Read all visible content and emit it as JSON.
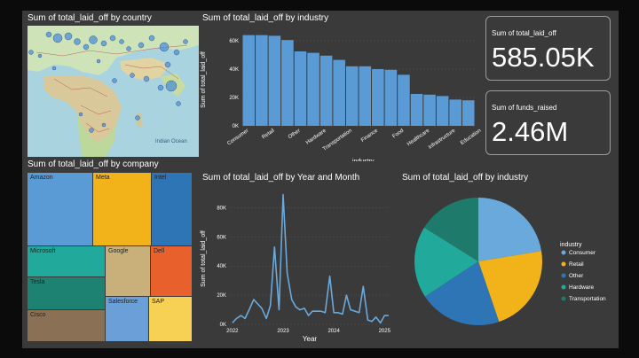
{
  "map": {
    "title": "Sum of total_laid_off by country",
    "ocean_label": "Indian Ocean"
  },
  "treemap": {
    "title": "Sum of total_laid_off by company",
    "tiles": [
      {
        "label": "Amazon",
        "color": "#5b9bd5"
      },
      {
        "label": "Meta",
        "color": "#f2b31a"
      },
      {
        "label": "Intel",
        "color": "#2e75b6"
      },
      {
        "label": "Microsoft",
        "color": "#21a99b"
      },
      {
        "label": "Google",
        "color": "#c9b07a"
      },
      {
        "label": "Dell",
        "color": "#e8602c"
      },
      {
        "label": "Tesla",
        "color": "#1e8273"
      },
      {
        "label": "Salesforce",
        "color": "#6a9fd8"
      },
      {
        "label": "SAP",
        "color": "#f7d154"
      },
      {
        "label": "Cisco",
        "color": "#8a7155"
      }
    ]
  },
  "cards": [
    {
      "label": "Sum of total_laid_off",
      "value": "585.05K"
    },
    {
      "label": "Sum of funds_raised",
      "value": "2.46M"
    }
  ],
  "colors": {
    "bar": "#5b9bd5",
    "line": "#6aa9dc",
    "background": "#3a3a3a",
    "text": "#ffffff"
  },
  "chart_data": [
    {
      "type": "bar",
      "title": "Sum of total_laid_off by industry",
      "xlabel": "industry",
      "ylabel": "Sum of total_laid_off",
      "ylim": [
        0,
        65000
      ],
      "yticks": [
        "0K",
        "20K",
        "40K",
        "60K"
      ],
      "ytick_values": [
        0,
        20000,
        40000,
        60000
      ],
      "categories": [
        "Consumer",
        "Retail",
        "Other",
        "Hardware",
        "Transportation",
        "Finance",
        "Food",
        "Healthcare",
        "Infrastructure",
        "Education"
      ],
      "all_bars": [
        64000,
        64000,
        63500,
        60500,
        52500,
        51500,
        49500,
        46500,
        42000,
        42000,
        40000,
        39500,
        36000,
        22500,
        22000,
        21000,
        18500,
        18000
      ],
      "label_every": 2
    },
    {
      "type": "line",
      "title": "Sum of total_laid_off by Year and Month",
      "xlabel": "Year",
      "ylabel": "Sum of total_laid_off",
      "ylim": [
        0,
        90000
      ],
      "yticks": [
        "0K",
        "20K",
        "40K",
        "60K",
        "80K"
      ],
      "ytick_values": [
        0,
        20000,
        40000,
        60000,
        80000
      ],
      "xticks": [
        "2022",
        "2023",
        "2024",
        "2025"
      ],
      "x_range": [
        2021.95,
        2025.1
      ],
      "x": [
        2022.0,
        2022.08,
        2022.17,
        2022.25,
        2022.33,
        2022.42,
        2022.5,
        2022.58,
        2022.67,
        2022.75,
        2022.83,
        2022.92,
        2023.0,
        2023.08,
        2023.17,
        2023.25,
        2023.33,
        2023.42,
        2023.5,
        2023.58,
        2023.67,
        2023.75,
        2023.83,
        2023.92,
        2024.0,
        2024.08,
        2024.17,
        2024.25,
        2024.33,
        2024.42,
        2024.5,
        2024.58,
        2024.67,
        2024.75,
        2024.83,
        2024.92,
        2025.0,
        2025.08
      ],
      "values": [
        1000,
        4000,
        6000,
        4000,
        10000,
        17000,
        14000,
        11000,
        4000,
        13000,
        53000,
        10000,
        89000,
        35000,
        17000,
        12000,
        10000,
        11000,
        6000,
        9000,
        9000,
        9000,
        8000,
        33000,
        8000,
        8000,
        7000,
        20000,
        10000,
        9000,
        8000,
        26000,
        3000,
        2000,
        5000,
        1000,
        6000,
        6000
      ]
    },
    {
      "type": "pie",
      "title": "Sum of total_laid_off by industry",
      "legend_title": "industry",
      "legend_position": "right",
      "categories": [
        "Consumer",
        "Retail",
        "Other",
        "Hardware",
        "Transportation"
      ],
      "values": [
        64000,
        64000,
        60000,
        52000,
        46000
      ],
      "colors": [
        "#6aa9dc",
        "#f2b31a",
        "#2e75b6",
        "#21a99b",
        "#1e7b6b"
      ]
    }
  ]
}
